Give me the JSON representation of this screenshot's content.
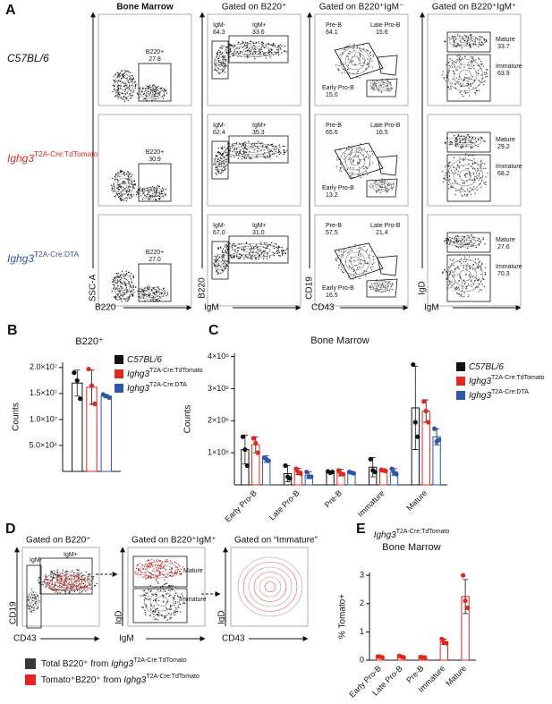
{
  "panel_a": {
    "label": "A",
    "column_titles": [
      "Bone Marrow",
      "Gated on B220⁺",
      "Gated on B220⁺IgM⁻",
      "Gated on B220⁺IgM⁺"
    ],
    "x_axis_labels": [
      "B220",
      "IgM",
      "CD43",
      "IgM"
    ],
    "y_axis_labels": [
      "SSC-A",
      "B220",
      "CD19",
      "IgD"
    ],
    "rows": [
      {
        "strain": "C57BL/6",
        "color": "#111111",
        "gates": [
          {
            "label": "B220+",
            "value": "27.8"
          },
          {
            "label": "IgM-",
            "value": "64.3"
          },
          {
            "label": "IgM+",
            "value": "33.6"
          },
          {
            "label": "Pre-B",
            "value": "64.1"
          },
          {
            "label": "Late Pro-B",
            "value": "15.6"
          },
          {
            "label": "Early Pro-B",
            "value": "15.0"
          },
          {
            "label": "Mature",
            "value": "33.7"
          },
          {
            "label": "Immature",
            "value": "63.9"
          }
        ]
      },
      {
        "strain": "Ighg3",
        "strain_sup": "T2A-Cre:TdTomato",
        "color": "#e3261f",
        "gates": [
          {
            "label": "B220+",
            "value": "30.9"
          },
          {
            "label": "IgM-",
            "value": "62.4"
          },
          {
            "label": "IgM+",
            "value": "35.3"
          },
          {
            "label": "Pre-B",
            "value": "65.6"
          },
          {
            "label": "Late Pro-B",
            "value": "16.5"
          },
          {
            "label": "Early Pro-B",
            "value": "13.2"
          },
          {
            "label": "Mature",
            "value": "29.2"
          },
          {
            "label": "Immature",
            "value": "68.2"
          }
        ]
      },
      {
        "strain": "Ighg3",
        "strain_sup": "T2A-Cre:DTA",
        "color": "#2d57a8",
        "gates": [
          {
            "label": "B220+",
            "value": "27.0"
          },
          {
            "label": "IgM-",
            "value": "67.0"
          },
          {
            "label": "IgM+",
            "value": "31.0"
          },
          {
            "label": "Pre-B",
            "value": "57.5"
          },
          {
            "label": "Late Pro-B",
            "value": "21.4"
          },
          {
            "label": "Early Pro-B",
            "value": "16.5"
          },
          {
            "label": "Mature",
            "value": "27.6"
          },
          {
            "label": "Immature",
            "value": "70.3"
          }
        ]
      }
    ]
  },
  "chart_data": [
    {
      "type": "bar",
      "panel_label": "B",
      "title": "B220⁺",
      "y_label": "Counts",
      "categories": [
        null
      ],
      "ylim": [
        0,
        21000000
      ],
      "yticks": [
        {
          "value": 5000000,
          "label": "5.0×10⁶"
        },
        {
          "value": 10000000,
          "label": "1.0×10⁷"
        },
        {
          "value": 15000000,
          "label": "1.5×10⁷"
        },
        {
          "value": 20000000,
          "label": "2.0×10⁷"
        }
      ],
      "series": [
        {
          "name": "C57BL/6",
          "color": "#111111",
          "values": [
            17000000
          ],
          "errors": [
            2500000
          ],
          "points": [
            [
              19000000,
              17500000,
              14000000
            ]
          ]
        },
        {
          "name": "Ighg3",
          "name_sup": "T2A-Cre:TdTomato",
          "color": "#e3261f",
          "values": [
            16200000
          ],
          "errors": [
            3300000
          ],
          "points": [
            [
              19700000,
              16500000,
              13000000
            ]
          ]
        },
        {
          "name": "Ighg3",
          "name_sup": "T2A-Cre:DTA",
          "color": "#2d57a8",
          "values": [
            14500000
          ],
          "errors": [
            300000
          ],
          "points": [
            [
              14800000,
              14500000,
              14200000
            ]
          ]
        }
      ]
    },
    {
      "type": "bar",
      "panel_label": "C",
      "title": "Bone Marrow",
      "y_label": "Counts",
      "categories": [
        "Early Pro-B",
        "Late Pro-B",
        "Pre-B",
        "Immature",
        "Mature"
      ],
      "ylim": [
        0,
        4100000
      ],
      "yticks": [
        {
          "value": 1000000,
          "label": "1×10⁶"
        },
        {
          "value": 2000000,
          "label": "2×10⁶"
        },
        {
          "value": 3000000,
          "label": "3×10⁶"
        },
        {
          "value": 4000000,
          "label": "4×10⁶"
        }
      ],
      "series": [
        {
          "name": "C57BL/6",
          "color": "#111111",
          "values": [
            1100000,
            350000,
            400000,
            550000,
            2400000
          ],
          "errors": [
            450000,
            250000,
            30000,
            300000,
            1300000
          ],
          "points": [
            [
              1500000,
              1100000,
              600000
            ],
            [
              600000,
              250000,
              200000
            ],
            [
              420000,
              380000,
              400000
            ],
            [
              800000,
              450000,
              400000
            ],
            [
              3750000,
              1950000,
              1500000
            ]
          ]
        },
        {
          "name": "Ighg3",
          "name_sup": "T2A-Cre:TdTomato",
          "color": "#e3261f",
          "values": [
            1250000,
            420000,
            380000,
            450000,
            2300000
          ],
          "errors": [
            250000,
            100000,
            100000,
            50000,
            350000
          ],
          "points": [
            [
              1450000,
              1300000,
              1000000
            ],
            [
              500000,
              400000,
              350000
            ],
            [
              450000,
              350000,
              330000
            ],
            [
              470000,
              450000,
              430000
            ],
            [
              2600000,
              2300000,
              1950000
            ]
          ]
        },
        {
          "name": "Ighg3",
          "name_sup": "T2A-Cre:DTA",
          "color": "#2d57a8",
          "values": [
            800000,
            300000,
            380000,
            400000,
            1500000
          ],
          "errors": [
            100000,
            100000,
            30000,
            100000,
            250000
          ],
          "points": [
            [
              850000,
              800000,
              750000
            ],
            [
              400000,
              250000,
              250000
            ],
            [
              400000,
              380000,
              360000
            ],
            [
              500000,
              380000,
              330000
            ],
            [
              1750000,
              1350000,
              1400000
            ]
          ]
        }
      ]
    },
    {
      "type": "bar",
      "panel_label": "E",
      "strain": "Ighg3",
      "strain_sup": "T2A-Cre:TdTomato",
      "title": "Bone Marrow",
      "y_label": "% Tomato+",
      "categories": [
        "Early Pro-B",
        "Late Pro-B",
        "Pre-B",
        "Immature",
        "Mature"
      ],
      "ylim": [
        0,
        3.1
      ],
      "yticks": [
        0,
        1,
        2,
        3
      ],
      "color": "#e3261f",
      "values": [
        0.12,
        0.12,
        0.1,
        0.65,
        2.25
      ],
      "errors": [
        0.02,
        0.03,
        0.02,
        0.1,
        0.6
      ],
      "points": [
        [
          0.13,
          0.12,
          0.1
        ],
        [
          0.15,
          0.12,
          0.1
        ],
        [
          0.11,
          0.1,
          0.09
        ],
        [
          0.75,
          0.62,
          0.6
        ],
        [
          3.0,
          2.1,
          1.85
        ]
      ]
    }
  ],
  "panel_d": {
    "label": "D",
    "plots": [
      {
        "title": "Gated on B220⁺",
        "x_label": "CD43",
        "y_label": "CD19",
        "gates": [
          "IgM-",
          "IgM+"
        ]
      },
      {
        "title": "Gated on B220⁺IgM⁺",
        "x_label": "IgM",
        "y_label": "IgD",
        "gates": [
          "Mature",
          "Immature"
        ]
      },
      {
        "title": "Gated on “Immature”",
        "x_label": "CD43",
        "y_label": "IgD"
      }
    ],
    "legend": [
      {
        "color": "#3a3a3a",
        "text": "Total B220⁺ from ",
        "main": "Ighg3",
        "sup": "T2A-Cre:TdTomato"
      },
      {
        "color": "#e3261f",
        "text": "Tomato⁺B220⁺ from ",
        "main": "Ighg3",
        "sup": "T2A-Cre:TdTomato"
      }
    ]
  }
}
